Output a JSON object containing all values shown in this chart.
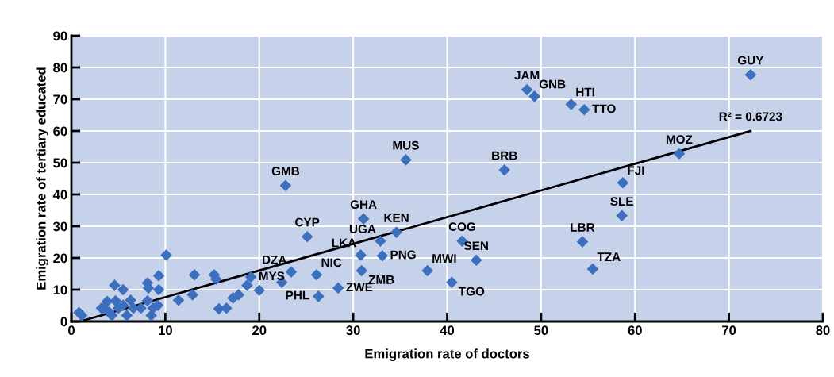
{
  "chart_data": {
    "type": "scatter",
    "xlabel": "Emigration rate of doctors",
    "ylabel": "Emigration rate of tertiary educated",
    "xlim": [
      0,
      80
    ],
    "xticks": [
      0,
      10,
      20,
      30,
      40,
      50,
      60,
      70,
      80
    ],
    "ylim": [
      0,
      90
    ],
    "yticks": [
      0,
      10,
      20,
      30,
      40,
      50,
      60,
      70,
      80,
      90
    ],
    "grid": true,
    "series": [
      {
        "color": "#3d6fbf",
        "marker": "diamond",
        "x": [
          72.3,
          48.5,
          49.3,
          53.2,
          54.6,
          64.7,
          46.1,
          35.6,
          58.7,
          58.6,
          54.4,
          55.5,
          41.6,
          43.1,
          40.5,
          37.9,
          22.8,
          31.1,
          34.6,
          32.9,
          33.1,
          30.8,
          30.9,
          25.1,
          23.4,
          26.1,
          28.4,
          26.3,
          19.1,
          22.4,
          18.7,
          20.0,
          17.8,
          0.8,
          1.1,
          4.6,
          5.5,
          10.1,
          9.3,
          8.1,
          8.2,
          9.3,
          13.1,
          11.4,
          12.9,
          15.2,
          15.4,
          15.7,
          16.5,
          17.2,
          3.4,
          3.8,
          4.0,
          4.7,
          5.0,
          5.9,
          6.3,
          6.6,
          7.4,
          8.1,
          8.5,
          8.7,
          9.2,
          3.2,
          5.5,
          4.3
        ],
        "values": [
          77.7,
          73.0,
          70.9,
          68.4,
          66.7,
          52.8,
          47.7,
          50.9,
          43.7,
          33.3,
          25.1,
          16.5,
          25.3,
          19.3,
          12.3,
          16.0,
          42.8,
          32.3,
          28.1,
          25.3,
          20.7,
          20.9,
          16.0,
          26.7,
          15.6,
          14.7,
          10.5,
          7.9,
          14.0,
          12.3,
          11.4,
          9.8,
          8.4,
          2.8,
          1.9,
          11.4,
          10.0,
          20.9,
          14.4,
          12.1,
          10.5,
          10.0,
          14.7,
          6.7,
          8.4,
          14.7,
          13.3,
          4.0,
          4.2,
          7.4,
          4.2,
          6.3,
          3.0,
          6.5,
          4.2,
          1.9,
          6.7,
          4.2,
          4.2,
          6.5,
          1.9,
          4.2,
          5.1,
          4.2,
          5.1,
          1.9
        ]
      },
      {
        "type": "line",
        "color": "#000000",
        "x": [
          0.9,
          72.3
        ],
        "values": [
          0,
          60
        ],
        "line_style": "solid"
      }
    ],
    "annotations": [
      {
        "text": "GUY",
        "x": 72.3,
        "y": 77.7
      },
      {
        "text": "JAM",
        "x": 48.5,
        "y": 73.0
      },
      {
        "text": "GNB",
        "x": 49.3,
        "y": 70.9
      },
      {
        "text": "HTI",
        "x": 53.2,
        "y": 68.4
      },
      {
        "text": "TTO",
        "x": 54.6,
        "y": 66.7
      },
      {
        "text": "MOZ",
        "x": 64.7,
        "y": 52.8
      },
      {
        "text": "BRB",
        "x": 46.1,
        "y": 47.7
      },
      {
        "text": "MUS",
        "x": 35.6,
        "y": 50.9
      },
      {
        "text": "FJI",
        "x": 58.7,
        "y": 43.7
      },
      {
        "text": "SLE",
        "x": 58.6,
        "y": 33.3
      },
      {
        "text": "LBR",
        "x": 54.4,
        "y": 25.1
      },
      {
        "text": "TZA",
        "x": 55.5,
        "y": 16.5
      },
      {
        "text": "COG",
        "x": 41.6,
        "y": 25.3
      },
      {
        "text": "SEN",
        "x": 43.1,
        "y": 19.3
      },
      {
        "text": "TGO",
        "x": 40.5,
        "y": 12.3
      },
      {
        "text": "MWI",
        "x": 37.9,
        "y": 16.0
      },
      {
        "text": "GMB",
        "x": 22.8,
        "y": 42.8
      },
      {
        "text": "GHA",
        "x": 31.1,
        "y": 32.3
      },
      {
        "text": "KEN",
        "x": 34.6,
        "y": 28.1
      },
      {
        "text": "UGA",
        "x": 32.9,
        "y": 25.3
      },
      {
        "text": "PNG",
        "x": 33.1,
        "y": 20.7
      },
      {
        "text": "LKA",
        "x": 30.8,
        "y": 20.9
      },
      {
        "text": "ZMB",
        "x": 30.9,
        "y": 16.0
      },
      {
        "text": "CYP",
        "x": 25.1,
        "y": 26.7
      },
      {
        "text": "DZA",
        "x": 23.4,
        "y": 15.6
      },
      {
        "text": "NIC",
        "x": 26.1,
        "y": 14.7
      },
      {
        "text": "ZWE",
        "x": 28.4,
        "y": 10.5
      },
      {
        "text": "PHL",
        "x": 26.3,
        "y": 7.9
      },
      {
        "text": "MYS",
        "x": 19.1,
        "y": 14.0
      },
      {
        "text": "R² = 0.6723",
        "x": 72.3,
        "y": 60
      }
    ]
  }
}
